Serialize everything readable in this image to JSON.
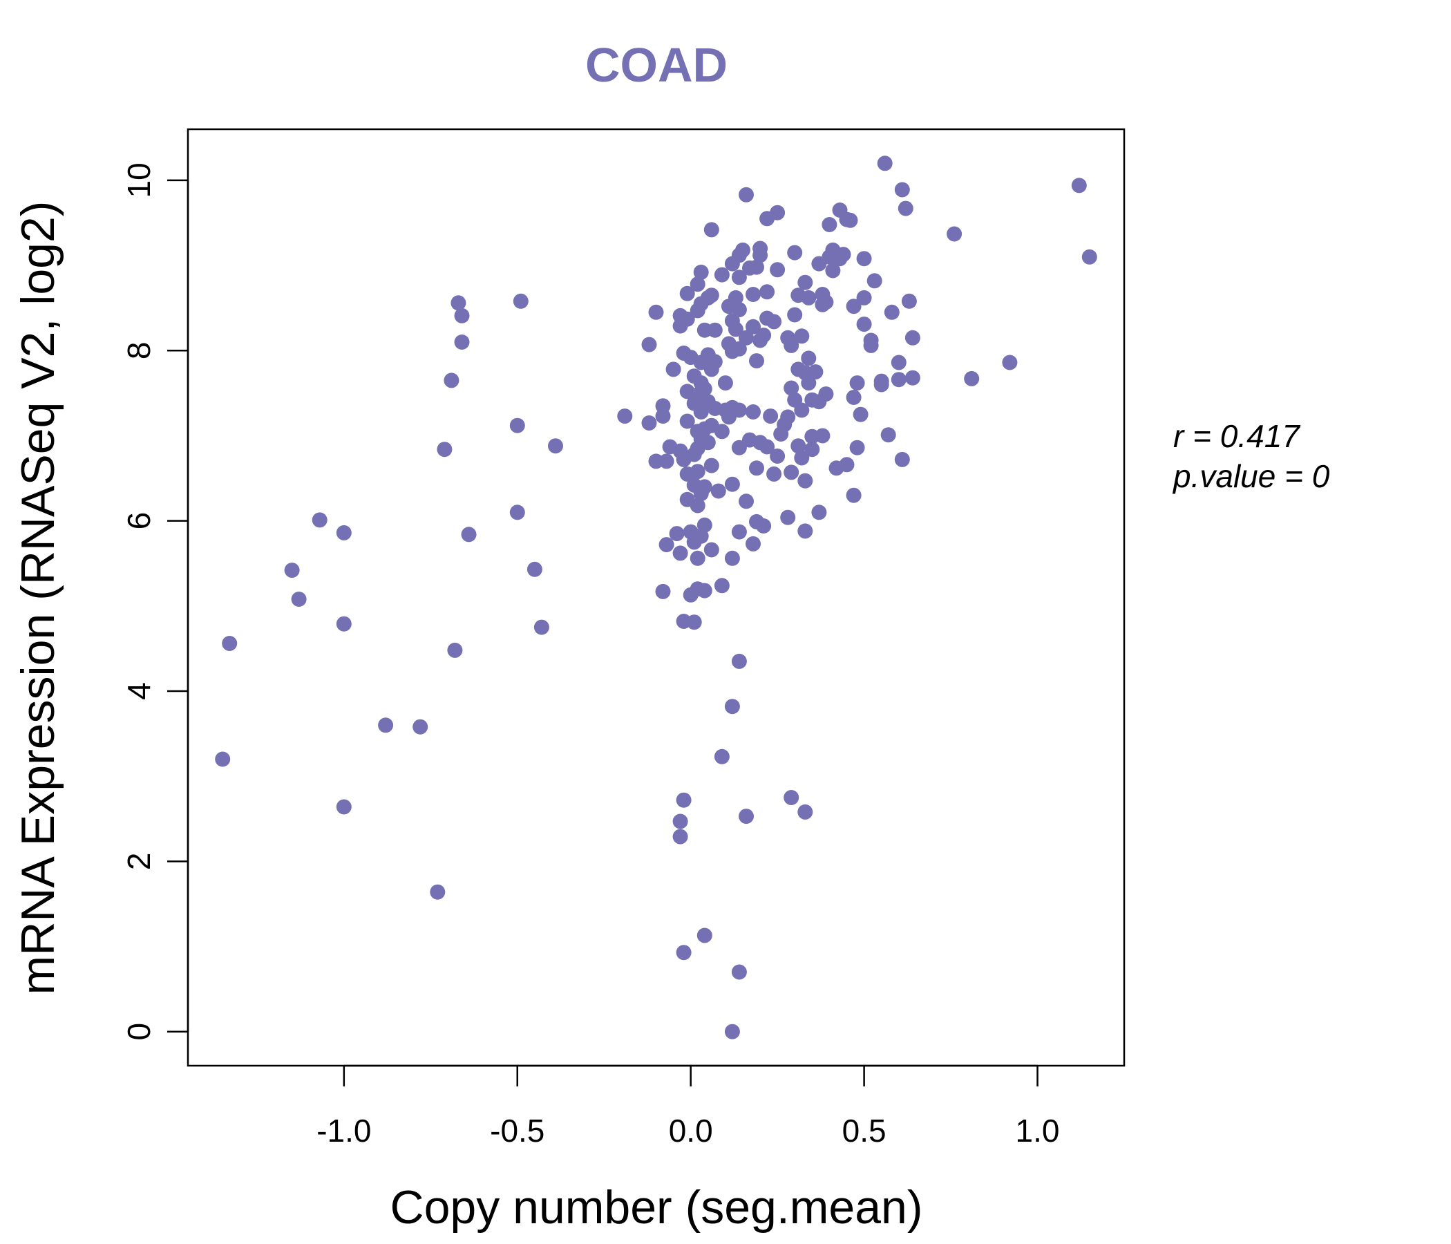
{
  "chart_data": {
    "type": "scatter",
    "title": "COAD",
    "xlabel": "Copy number (seg.mean)",
    "ylabel": "mRNA Expression (RNASeq V2, log2)",
    "xlim": [
      -1.45,
      1.25
    ],
    "ylim": [
      -0.4,
      10.6
    ],
    "x_ticks": [
      -1.0,
      -0.5,
      0.0,
      0.5,
      1.0
    ],
    "x_tick_labels": [
      "-1.0",
      "-0.5",
      "0.0",
      "0.5",
      "1.0"
    ],
    "y_ticks": [
      0,
      2,
      4,
      6,
      8,
      10
    ],
    "y_tick_labels": [
      "0",
      "2",
      "4",
      "6",
      "8",
      "10"
    ],
    "point_color": "#7570b3",
    "annotation": {
      "r_label": "r = 0.417",
      "p_label": "p.value = 0"
    },
    "points": [
      [
        -1.35,
        3.2
      ],
      [
        -1.33,
        4.56
      ],
      [
        -1.15,
        5.42
      ],
      [
        -1.13,
        5.08
      ],
      [
        -1.07,
        6.01
      ],
      [
        -1.0,
        5.86
      ],
      [
        -1.0,
        4.79
      ],
      [
        -1.0,
        2.64
      ],
      [
        -0.88,
        3.6
      ],
      [
        -0.78,
        3.58
      ],
      [
        -0.73,
        1.64
      ],
      [
        -0.71,
        6.84
      ],
      [
        -0.69,
        7.65
      ],
      [
        -0.68,
        4.48
      ],
      [
        -0.67,
        8.56
      ],
      [
        -0.66,
        8.41
      ],
      [
        -0.66,
        8.1
      ],
      [
        -0.64,
        5.84
      ],
      [
        -0.5,
        7.12
      ],
      [
        -0.5,
        6.1
      ],
      [
        -0.49,
        8.58
      ],
      [
        -0.45,
        5.43
      ],
      [
        -0.43,
        4.75
      ],
      [
        -0.39,
        6.88
      ],
      [
        -0.19,
        7.23
      ],
      [
        -0.12,
        8.07
      ],
      [
        -0.12,
        7.15
      ],
      [
        -0.1,
        8.45
      ],
      [
        -0.1,
        6.7
      ],
      [
        -0.08,
        7.35
      ],
      [
        -0.08,
        7.23
      ],
      [
        -0.08,
        5.17
      ],
      [
        -0.07,
        5.72
      ],
      [
        -0.07,
        6.7
      ],
      [
        -0.06,
        6.87
      ],
      [
        -0.05,
        7.78
      ],
      [
        -0.04,
        5.85
      ],
      [
        -0.03,
        8.41
      ],
      [
        -0.03,
        8.29
      ],
      [
        -0.03,
        6.82
      ],
      [
        -0.03,
        5.62
      ],
      [
        -0.02,
        7.97
      ],
      [
        -0.02,
        6.72
      ],
      [
        -0.02,
        4.82
      ],
      [
        -0.01,
        8.67
      ],
      [
        -0.01,
        8.37
      ],
      [
        -0.01,
        7.52
      ],
      [
        -0.01,
        7.17
      ],
      [
        -0.01,
        6.55
      ],
      [
        -0.01,
        6.25
      ],
      [
        0.0,
        5.87
      ],
      [
        0.0,
        5.13
      ],
      [
        0.0,
        7.92
      ],
      [
        0.01,
        7.7
      ],
      [
        0.01,
        7.38
      ],
      [
        0.01,
        6.78
      ],
      [
        0.01,
        6.42
      ],
      [
        0.01,
        5.75
      ],
      [
        0.01,
        4.81
      ],
      [
        0.02,
        8.78
      ],
      [
        0.02,
        8.47
      ],
      [
        0.02,
        7.48
      ],
      [
        0.02,
        7.05
      ],
      [
        0.02,
        6.85
      ],
      [
        0.02,
        6.58
      ],
      [
        0.02,
        6.18
      ],
      [
        0.02,
        5.56
      ],
      [
        0.02,
        5.2
      ],
      [
        0.03,
        8.92
      ],
      [
        0.03,
        8.55
      ],
      [
        0.03,
        7.86
      ],
      [
        0.03,
        7.62
      ],
      [
        0.03,
        7.28
      ],
      [
        0.03,
        6.96
      ],
      [
        0.03,
        6.32
      ],
      [
        0.03,
        5.82
      ],
      [
        0.04,
        8.24
      ],
      [
        0.04,
        7.55
      ],
      [
        0.04,
        7.08
      ],
      [
        0.04,
        6.4
      ],
      [
        0.04,
        5.95
      ],
      [
        0.04,
        5.18
      ],
      [
        0.05,
        8.62
      ],
      [
        0.05,
        7.95
      ],
      [
        0.05,
        7.4
      ],
      [
        0.05,
        6.92
      ],
      [
        0.06,
        9.42
      ],
      [
        0.06,
        8.65
      ],
      [
        0.06,
        7.78
      ],
      [
        0.06,
        7.12
      ],
      [
        0.06,
        6.65
      ],
      [
        0.06,
        5.66
      ],
      [
        0.07,
        8.24
      ],
      [
        0.07,
        7.87
      ],
      [
        0.07,
        7.32
      ],
      [
        0.08,
        6.35
      ],
      [
        0.09,
        8.89
      ],
      [
        0.09,
        7.05
      ],
      [
        0.09,
        5.24
      ],
      [
        0.1,
        7.62
      ],
      [
        0.1,
        7.3
      ],
      [
        0.11,
        8.52
      ],
      [
        0.11,
        8.08
      ],
      [
        0.11,
        7.22
      ],
      [
        0.12,
        9.02
      ],
      [
        0.12,
        8.35
      ],
      [
        0.12,
        7.99
      ],
      [
        0.12,
        7.33
      ],
      [
        0.12,
        6.43
      ],
      [
        0.12,
        5.56
      ],
      [
        0.13,
        8.62
      ],
      [
        0.13,
        8.25
      ],
      [
        0.14,
        9.12
      ],
      [
        0.14,
        8.86
      ],
      [
        0.14,
        8.48
      ],
      [
        0.14,
        8.02
      ],
      [
        0.14,
        7.3
      ],
      [
        0.14,
        6.86
      ],
      [
        0.14,
        5.87
      ],
      [
        0.15,
        9.18
      ],
      [
        0.16,
        8.15
      ],
      [
        0.16,
        6.23
      ],
      [
        0.16,
        9.83
      ],
      [
        0.17,
        8.97
      ],
      [
        0.17,
        6.95
      ],
      [
        0.18,
        8.66
      ],
      [
        0.18,
        8.28
      ],
      [
        0.18,
        7.28
      ],
      [
        0.18,
        5.73
      ],
      [
        0.19,
        8.98
      ],
      [
        0.19,
        7.88
      ],
      [
        0.19,
        6.62
      ],
      [
        0.19,
        5.99
      ],
      [
        0.2,
        9.12
      ],
      [
        0.2,
        9.2
      ],
      [
        0.2,
        8.12
      ],
      [
        0.2,
        6.92
      ],
      [
        0.21,
        8.18
      ],
      [
        0.21,
        5.94
      ],
      [
        0.22,
        8.69
      ],
      [
        0.22,
        8.38
      ],
      [
        0.22,
        9.55
      ],
      [
        0.22,
        6.87
      ],
      [
        0.23,
        7.23
      ],
      [
        0.24,
        8.34
      ],
      [
        0.24,
        6.55
      ],
      [
        0.25,
        9.62
      ],
      [
        0.25,
        8.95
      ],
      [
        0.25,
        6.76
      ],
      [
        0.26,
        7.02
      ],
      [
        0.27,
        7.13
      ],
      [
        0.28,
        8.15
      ],
      [
        0.28,
        7.22
      ],
      [
        0.28,
        6.04
      ],
      [
        0.29,
        8.06
      ],
      [
        0.29,
        7.56
      ],
      [
        0.29,
        6.57
      ],
      [
        0.3,
        9.15
      ],
      [
        0.3,
        8.42
      ],
      [
        0.3,
        7.42
      ],
      [
        0.31,
        8.65
      ],
      [
        0.31,
        7.78
      ],
      [
        0.31,
        6.88
      ],
      [
        0.32,
        8.17
      ],
      [
        0.32,
        7.3
      ],
      [
        0.32,
        6.74
      ],
      [
        0.33,
        8.8
      ],
      [
        0.33,
        7.74
      ],
      [
        0.33,
        6.47
      ],
      [
        0.33,
        5.88
      ],
      [
        0.34,
        8.62
      ],
      [
        0.34,
        7.91
      ],
      [
        0.34,
        7.62
      ],
      [
        0.35,
        7.42
      ],
      [
        0.35,
        6.99
      ],
      [
        0.35,
        6.84
      ],
      [
        0.36,
        7.75
      ],
      [
        0.37,
        9.02
      ],
      [
        0.37,
        7.4
      ],
      [
        0.37,
        6.1
      ],
      [
        0.38,
        8.66
      ],
      [
        0.38,
        8.54
      ],
      [
        0.38,
        7.0
      ],
      [
        0.39,
        8.57
      ],
      [
        0.39,
        7.49
      ],
      [
        0.4,
        9.1
      ],
      [
        0.4,
        9.48
      ],
      [
        0.41,
        8.94
      ],
      [
        0.41,
        9.18
      ],
      [
        0.42,
        6.62
      ],
      [
        0.43,
        9.08
      ],
      [
        0.43,
        9.65
      ],
      [
        0.44,
        9.13
      ],
      [
        0.45,
        9.54
      ],
      [
        0.45,
        6.66
      ],
      [
        0.46,
        9.53
      ],
      [
        0.47,
        8.52
      ],
      [
        0.47,
        7.45
      ],
      [
        0.47,
        6.3
      ],
      [
        0.48,
        7.62
      ],
      [
        0.48,
        6.86
      ],
      [
        0.49,
        7.25
      ],
      [
        0.5,
        9.08
      ],
      [
        0.5,
        8.62
      ],
      [
        0.5,
        8.31
      ],
      [
        0.52,
        8.06
      ],
      [
        0.52,
        8.12
      ],
      [
        0.53,
        8.82
      ],
      [
        0.55,
        7.64
      ],
      [
        0.55,
        7.6
      ],
      [
        0.56,
        10.2
      ],
      [
        0.57,
        7.01
      ],
      [
        0.58,
        8.45
      ],
      [
        0.6,
        7.66
      ],
      [
        0.6,
        7.86
      ],
      [
        0.61,
        9.89
      ],
      [
        0.61,
        6.72
      ],
      [
        0.62,
        9.67
      ],
      [
        0.63,
        8.58
      ],
      [
        0.64,
        8.15
      ],
      [
        0.64,
        7.68
      ],
      [
        0.76,
        9.37
      ],
      [
        0.81,
        7.67
      ],
      [
        0.92,
        7.86
      ],
      [
        1.12,
        9.94
      ],
      [
        1.15,
        9.1
      ],
      [
        -0.03,
        2.29
      ],
      [
        -0.03,
        2.47
      ],
      [
        -0.02,
        2.72
      ],
      [
        -0.02,
        0.93
      ],
      [
        0.04,
        1.13
      ],
      [
        0.09,
        3.23
      ],
      [
        0.12,
        3.82
      ],
      [
        0.14,
        4.35
      ],
      [
        0.16,
        2.53
      ],
      [
        0.12,
        0.0
      ],
      [
        0.14,
        0.7
      ],
      [
        0.29,
        2.75
      ],
      [
        0.33,
        2.58
      ]
    ]
  }
}
